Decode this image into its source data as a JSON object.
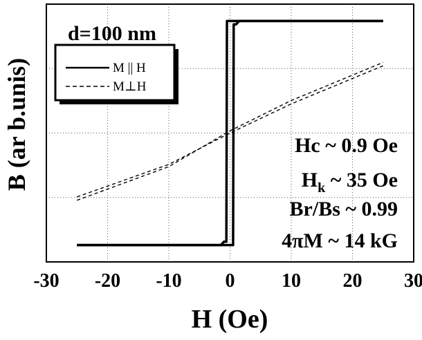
{
  "chart_data": {
    "type": "line",
    "xlabel": "H (Oe)",
    "ylabel": "B (ar b.unis)",
    "xlim": [
      -30,
      30
    ],
    "ylim": [
      -1.15,
      1.15
    ],
    "xticks": [
      -30,
      -20,
      -10,
      0,
      10,
      20,
      30
    ],
    "xtick_labels": [
      "-30",
      "-20",
      "-10",
      "0",
      "10",
      "20",
      "30"
    ],
    "grid": true,
    "legend_position": "top-left",
    "annotations": {
      "sample": "d=100 nm",
      "hc": "Hc ~ 0.9 Oe",
      "hk_main": "H",
      "hk_sub": "k",
      "hk_rest": " ~ 35 Oe",
      "brbs": "Br/Bs ~ 0.99",
      "m4pi": "4πM ~ 14 kG"
    },
    "series": [
      {
        "name": "M || H",
        "style": "solid",
        "color": "#000000",
        "loops": [
          {
            "x": [
              -25,
              -1.5,
              -1.0,
              -0.6,
              -0.5,
              1.0,
              25
            ],
            "y": [
              -1,
              -1,
              -0.97,
              -0.97,
              1,
              1,
              1
            ]
          },
          {
            "x": [
              25,
              1.5,
              1.0,
              0.6,
              0.5,
              -1.0,
              -25
            ],
            "y": [
              1,
              1,
              0.97,
              0.97,
              -1,
              -1,
              -1
            ]
          }
        ]
      },
      {
        "name": "M⊥H",
        "style": "dashed",
        "color": "#000000",
        "loops": [
          {
            "x": [
              -25,
              -10,
              0,
              10,
              25
            ],
            "y": [
              -0.57,
              -0.28,
              0.0,
              0.26,
              0.6
            ]
          },
          {
            "x": [
              -25,
              -10,
              0,
              10,
              25
            ],
            "y": [
              -0.6,
              -0.3,
              0.02,
              0.29,
              0.63
            ]
          }
        ]
      }
    ]
  }
}
